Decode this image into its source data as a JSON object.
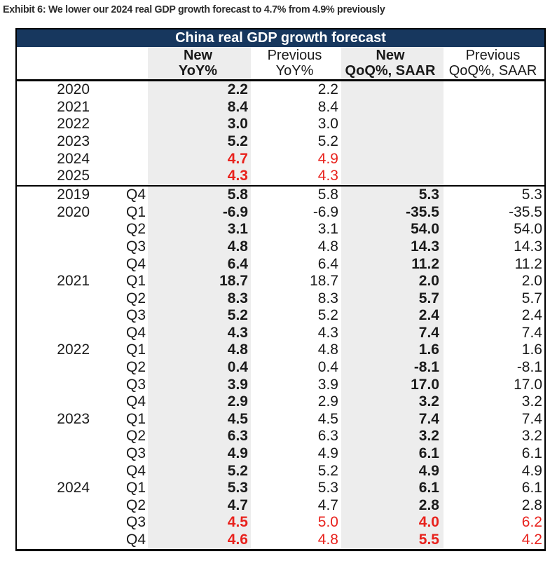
{
  "exhibit": {
    "title": "Exhibit 6: We lower our 2024 real GDP growth forecast to 4.7% from 4.9% previously"
  },
  "table": {
    "title": "China real GDP growth forecast",
    "colors": {
      "header_navy": "#17375E",
      "highlight_red": "#E8221D",
      "shade_gray": "#EDEDED",
      "text_black": "#1A1A1A"
    },
    "columns": [
      {
        "line1": "New",
        "line2": "YoY%"
      },
      {
        "line1": "Previous",
        "line2": "YoY%"
      },
      {
        "line1": "New",
        "line2": "QoQ%, SAAR"
      },
      {
        "line1": "Previous",
        "line2": "QoQ%, SAAR"
      }
    ],
    "annual_rows": [
      {
        "year": "2020",
        "quarter": "",
        "new_yoy": "2.2",
        "prev_yoy": "2.2",
        "new_qoq": "",
        "prev_qoq": "",
        "highlight": false
      },
      {
        "year": "2021",
        "quarter": "",
        "new_yoy": "8.4",
        "prev_yoy": "8.4",
        "new_qoq": "",
        "prev_qoq": "",
        "highlight": false
      },
      {
        "year": "2022",
        "quarter": "",
        "new_yoy": "3.0",
        "prev_yoy": "3.0",
        "new_qoq": "",
        "prev_qoq": "",
        "highlight": false
      },
      {
        "year": "2023",
        "quarter": "",
        "new_yoy": "5.2",
        "prev_yoy": "5.2",
        "new_qoq": "",
        "prev_qoq": "",
        "highlight": false
      },
      {
        "year": "2024",
        "quarter": "",
        "new_yoy": "4.7",
        "prev_yoy": "4.9",
        "new_qoq": "",
        "prev_qoq": "",
        "highlight": true
      },
      {
        "year": "2025",
        "quarter": "",
        "new_yoy": "4.3",
        "prev_yoy": "4.3",
        "new_qoq": "",
        "prev_qoq": "",
        "highlight": true
      }
    ],
    "quarterly_rows": [
      {
        "year": "2019",
        "quarter": "Q4",
        "new_yoy": "5.8",
        "prev_yoy": "5.8",
        "new_qoq": "5.3",
        "prev_qoq": "5.3",
        "highlight": false
      },
      {
        "year": "2020",
        "quarter": "Q1",
        "new_yoy": "-6.9",
        "prev_yoy": "-6.9",
        "new_qoq": "-35.5",
        "prev_qoq": "-35.5",
        "highlight": false
      },
      {
        "year": "",
        "quarter": "Q2",
        "new_yoy": "3.1",
        "prev_yoy": "3.1",
        "new_qoq": "54.0",
        "prev_qoq": "54.0",
        "highlight": false
      },
      {
        "year": "",
        "quarter": "Q3",
        "new_yoy": "4.8",
        "prev_yoy": "4.8",
        "new_qoq": "14.3",
        "prev_qoq": "14.3",
        "highlight": false
      },
      {
        "year": "",
        "quarter": "Q4",
        "new_yoy": "6.4",
        "prev_yoy": "6.4",
        "new_qoq": "11.2",
        "prev_qoq": "11.2",
        "highlight": false
      },
      {
        "year": "2021",
        "quarter": "Q1",
        "new_yoy": "18.7",
        "prev_yoy": "18.7",
        "new_qoq": "2.0",
        "prev_qoq": "2.0",
        "highlight": false
      },
      {
        "year": "",
        "quarter": "Q2",
        "new_yoy": "8.3",
        "prev_yoy": "8.3",
        "new_qoq": "5.7",
        "prev_qoq": "5.7",
        "highlight": false
      },
      {
        "year": "",
        "quarter": "Q3",
        "new_yoy": "5.2",
        "prev_yoy": "5.2",
        "new_qoq": "2.4",
        "prev_qoq": "2.4",
        "highlight": false
      },
      {
        "year": "",
        "quarter": "Q4",
        "new_yoy": "4.3",
        "prev_yoy": "4.3",
        "new_qoq": "7.4",
        "prev_qoq": "7.4",
        "highlight": false
      },
      {
        "year": "2022",
        "quarter": "Q1",
        "new_yoy": "4.8",
        "prev_yoy": "4.8",
        "new_qoq": "1.6",
        "prev_qoq": "1.6",
        "highlight": false
      },
      {
        "year": "",
        "quarter": "Q2",
        "new_yoy": "0.4",
        "prev_yoy": "0.4",
        "new_qoq": "-8.1",
        "prev_qoq": "-8.1",
        "highlight": false
      },
      {
        "year": "",
        "quarter": "Q3",
        "new_yoy": "3.9",
        "prev_yoy": "3.9",
        "new_qoq": "17.0",
        "prev_qoq": "17.0",
        "highlight": false
      },
      {
        "year": "",
        "quarter": "Q4",
        "new_yoy": "2.9",
        "prev_yoy": "2.9",
        "new_qoq": "3.2",
        "prev_qoq": "3.2",
        "highlight": false
      },
      {
        "year": "2023",
        "quarter": "Q1",
        "new_yoy": "4.5",
        "prev_yoy": "4.5",
        "new_qoq": "7.4",
        "prev_qoq": "7.4",
        "highlight": false
      },
      {
        "year": "",
        "quarter": "Q2",
        "new_yoy": "6.3",
        "prev_yoy": "6.3",
        "new_qoq": "3.2",
        "prev_qoq": "3.2",
        "highlight": false
      },
      {
        "year": "",
        "quarter": "Q3",
        "new_yoy": "4.9",
        "prev_yoy": "4.9",
        "new_qoq": "6.1",
        "prev_qoq": "6.1",
        "highlight": false
      },
      {
        "year": "",
        "quarter": "Q4",
        "new_yoy": "5.2",
        "prev_yoy": "5.2",
        "new_qoq": "4.9",
        "prev_qoq": "4.9",
        "highlight": false
      },
      {
        "year": "2024",
        "quarter": "Q1",
        "new_yoy": "5.3",
        "prev_yoy": "5.3",
        "new_qoq": "6.1",
        "prev_qoq": "6.1",
        "highlight": false
      },
      {
        "year": "",
        "quarter": "Q2",
        "new_yoy": "4.7",
        "prev_yoy": "4.7",
        "new_qoq": "2.8",
        "prev_qoq": "2.8",
        "highlight": false
      },
      {
        "year": "",
        "quarter": "Q3",
        "new_yoy": "4.5",
        "prev_yoy": "5.0",
        "new_qoq": "4.0",
        "prev_qoq": "6.2",
        "highlight": true
      },
      {
        "year": "",
        "quarter": "Q4",
        "new_yoy": "4.6",
        "prev_yoy": "4.8",
        "new_qoq": "5.5",
        "prev_qoq": "4.2",
        "highlight": true
      }
    ]
  }
}
